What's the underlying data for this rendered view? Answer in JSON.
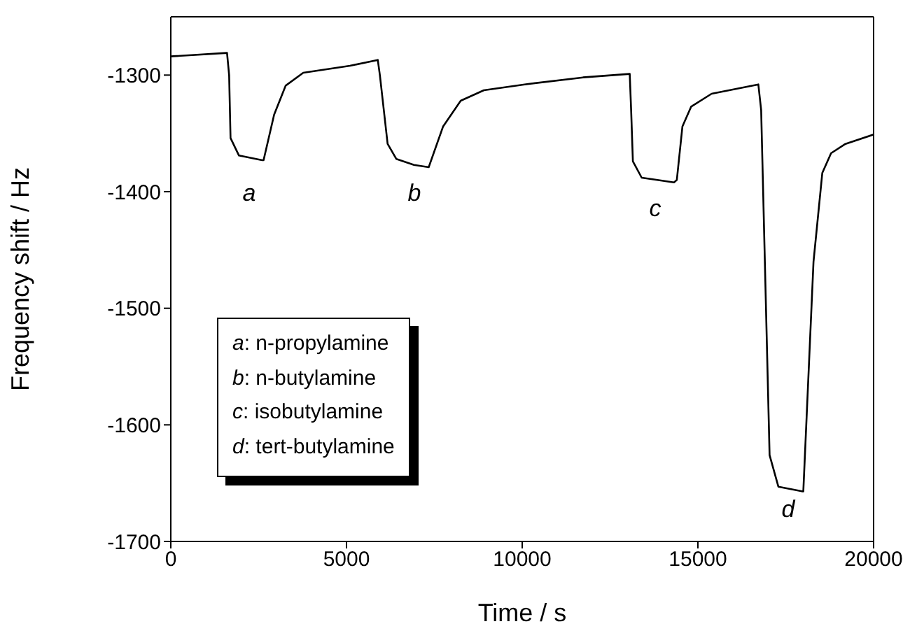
{
  "chart_data": {
    "type": "line",
    "xlabel": "Time / s",
    "ylabel": "Frequency shift / Hz",
    "xlim": [
      0,
      20000
    ],
    "xticks": [
      0,
      5000,
      10000,
      15000,
      20000
    ],
    "ylim": [
      -1700,
      -1250
    ],
    "yticks": [
      -1700,
      -1600,
      -1500,
      -1400,
      -1300
    ],
    "marker": "none",
    "line_style": "solid",
    "x": [
      0,
      1600,
      1660,
      1700,
      1940,
      2600,
      2640,
      2940,
      3270,
      3770,
      5100,
      5890,
      5950,
      6170,
      6420,
      6920,
      7340,
      7750,
      8250,
      8910,
      10070,
      11730,
      13060,
      13100,
      13150,
      13400,
      14320,
      14400,
      14560,
      14810,
      15390,
      16720,
      16800,
      17040,
      17290,
      17960,
      18000,
      18290,
      18540,
      18790,
      19200,
      20000
    ],
    "series": [
      {
        "color": "#000000",
        "values": [
          -1284,
          -1281,
          -1300,
          -1354,
          -1369,
          -1373,
          -1373,
          -1334,
          -1309,
          -1298,
          -1292,
          -1287,
          -1300,
          -1359,
          -1372,
          -1377,
          -1379,
          -1344,
          -1322,
          -1313,
          -1308,
          -1302,
          -1299,
          -1330,
          -1374,
          -1388,
          -1392,
          -1390,
          -1344,
          -1327,
          -1316,
          -1308,
          -1330,
          -1626,
          -1653,
          -1657,
          -1657,
          -1460,
          -1384,
          -1367,
          -1359,
          -1351
        ]
      }
    ],
    "annotations": [
      "a",
      "b",
      "c",
      "d",
      "a: n-propylamine",
      "b: n-butylamine",
      "c: isobutylamine",
      "d: tert-butylamine"
    ]
  }
}
